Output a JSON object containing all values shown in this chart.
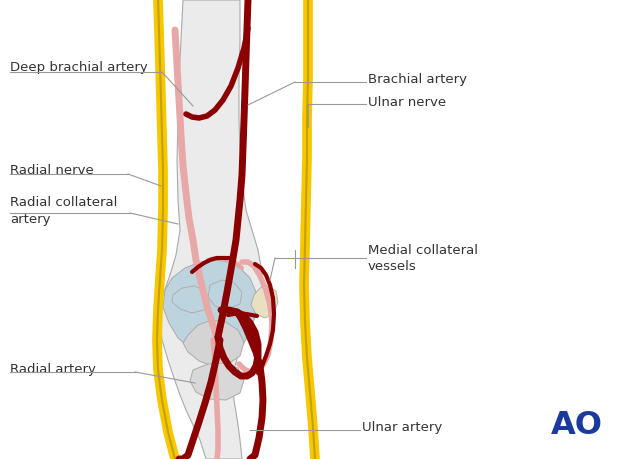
{
  "bg_color": "#ffffff",
  "bone_color": "#ebebeb",
  "bone_outline": "#aaaaaa",
  "cartilage_color": "#bdd4de",
  "artery_dark": "#8b0000",
  "artery_light": "#e8a8a8",
  "nerve_yellow": "#f5c800",
  "nerve_yellow_dark": "#c8a000",
  "ann_color": "#333333",
  "line_color": "#999999",
  "ao_color": "#1a3a9e",
  "fontsize": 9.5,
  "labels": {
    "deep_brachial": "Deep brachial artery",
    "brachial": "Brachial artery",
    "ulnar_nerve": "Ulnar nerve",
    "radial_nerve": "Radial nerve",
    "radial_collateral_1": "Radial collateral",
    "radial_collateral_2": "artery",
    "medial_collateral_1": "Medial collateral",
    "medial_collateral_2": "vessels",
    "radial_artery": "Radial artery",
    "ulnar_artery": "Ulnar artery"
  }
}
